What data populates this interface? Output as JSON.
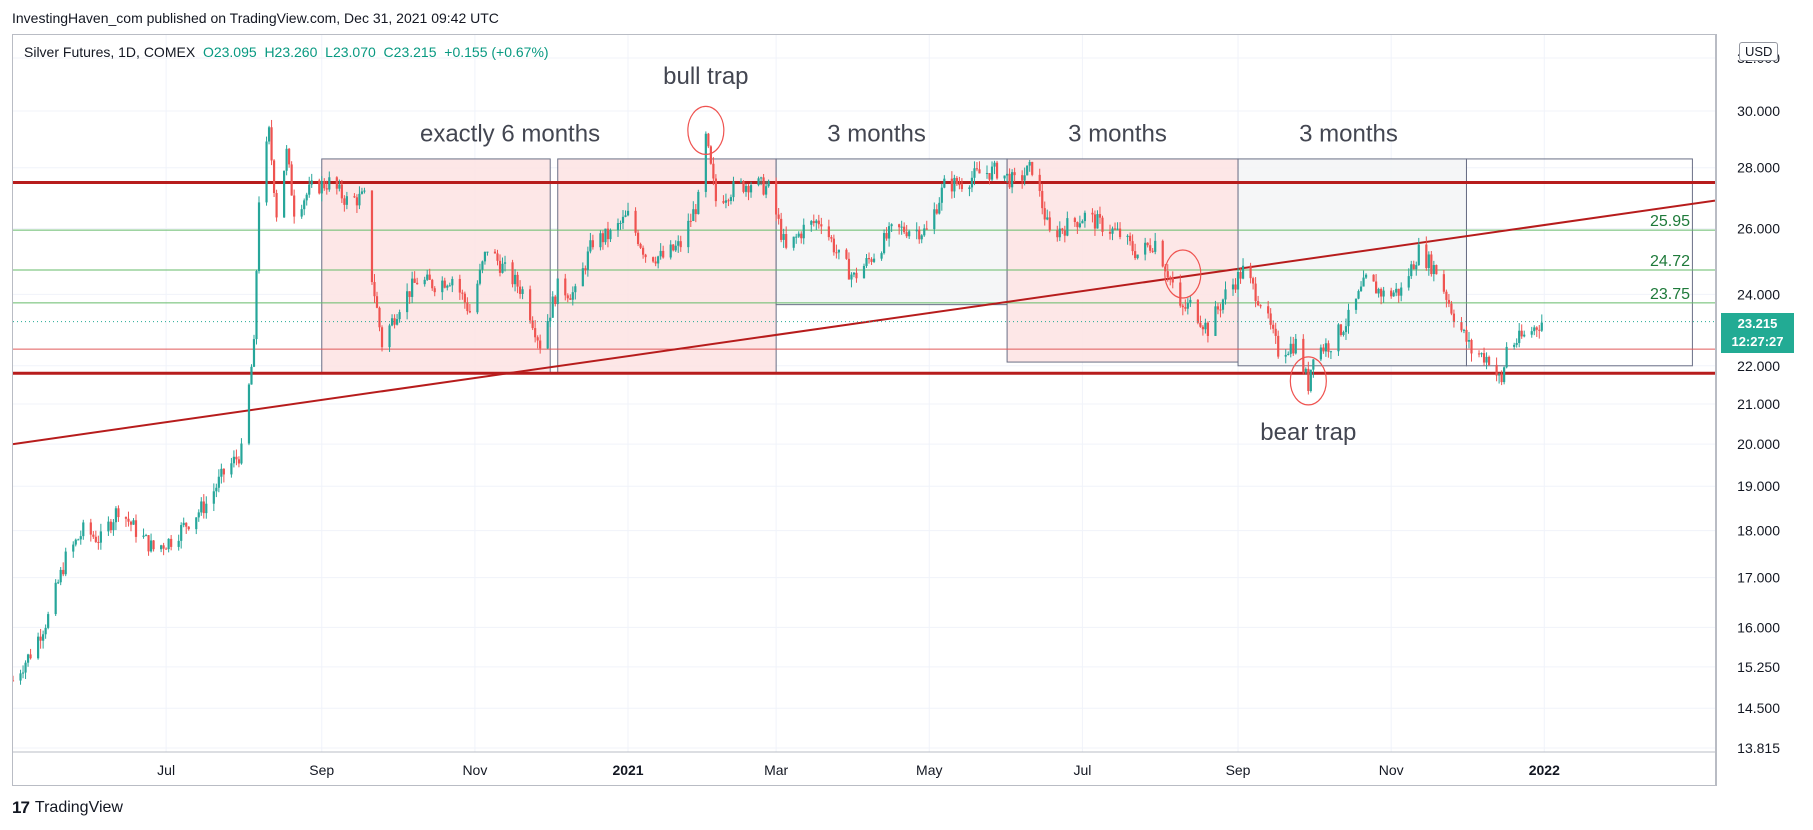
{
  "header": {
    "published": "InvestingHaven_com published on TradingView.com, Dec 31, 2021 09:42 UTC"
  },
  "legend": {
    "symbol": "Silver Futures, 1D, COMEX",
    "open": "O23.095",
    "high": "H23.260",
    "low": "L23.070",
    "close": "C23.215",
    "change": "+0.155 (+0.67%)"
  },
  "price_axis": {
    "currency": "USD",
    "last_price": "23.215",
    "countdown": "12:27:27"
  },
  "footer": {
    "brand": "TradingView",
    "logo_glyph": "17"
  },
  "colors": {
    "up": "#26a69a",
    "down": "#ef5350",
    "resistance": "#b71c1c",
    "level_green": "#4caf50",
    "range_box_red": "#fde3e3",
    "range_box_grey": "#f3f4f6",
    "last_price_badge": "#22ab94"
  },
  "chart_data": {
    "type": "candlestick",
    "symbol": "Silver Futures",
    "interval": "1D",
    "exchange": "COMEX",
    "y_scale": "log",
    "ylim": [
      13.815,
      32.0
    ],
    "y_ticks": [
      "32.000",
      "30.000",
      "28.000",
      "26.000",
      "24.000",
      "22.000",
      "21.000",
      "20.000",
      "19.000",
      "18.000",
      "17.000",
      "16.000",
      "15.250",
      "14.500",
      "13.815"
    ],
    "y_tick_values": [
      32,
      30,
      28,
      26,
      24,
      22,
      21,
      20,
      19,
      18,
      17,
      16,
      15.25,
      14.5,
      13.815
    ],
    "x_ticks": [
      {
        "label": "Jul",
        "date": "2020-07-01",
        "bold": false
      },
      {
        "label": "Sep",
        "date": "2020-09-01",
        "bold": false
      },
      {
        "label": "Nov",
        "date": "2020-11-01",
        "bold": false
      },
      {
        "label": "2021",
        "date": "2021-01-01",
        "bold": true
      },
      {
        "label": "Mar",
        "date": "2021-03-01",
        "bold": false
      },
      {
        "label": "May",
        "date": "2021-05-01",
        "bold": false
      },
      {
        "label": "Jul",
        "date": "2021-07-01",
        "bold": false
      },
      {
        "label": "Sep",
        "date": "2021-09-01",
        "bold": false
      },
      {
        "label": "Nov",
        "date": "2021-11-01",
        "bold": false
      },
      {
        "label": "2022",
        "date": "2022-01-01",
        "bold": true
      }
    ],
    "x_range": [
      "2020-05-01",
      "2022-03-10"
    ],
    "grid": true,
    "close_path": [
      [
        "2020-05-01",
        15.0
      ],
      [
        "2020-05-08",
        15.5
      ],
      [
        "2020-05-15",
        16.2
      ],
      [
        "2020-05-22",
        17.4
      ],
      [
        "2020-05-29",
        18.0
      ],
      [
        "2020-06-05",
        17.8
      ],
      [
        "2020-06-12",
        18.5
      ],
      [
        "2020-06-19",
        18.0
      ],
      [
        "2020-06-26",
        17.6
      ],
      [
        "2020-07-03",
        17.8
      ],
      [
        "2020-07-10",
        18.2
      ],
      [
        "2020-07-17",
        18.6
      ],
      [
        "2020-07-24",
        19.3
      ],
      [
        "2020-07-31",
        19.8
      ],
      [
        "2020-08-05",
        22.5
      ],
      [
        "2020-08-07",
        27.0
      ],
      [
        "2020-08-11",
        29.2
      ],
      [
        "2020-08-14",
        26.5
      ],
      [
        "2020-08-18",
        28.5
      ],
      [
        "2020-08-21",
        26.6
      ],
      [
        "2020-08-28",
        27.3
      ],
      [
        "2020-09-04",
        27.5
      ],
      [
        "2020-09-11",
        26.9
      ],
      [
        "2020-09-18",
        27.0
      ],
      [
        "2020-09-21",
        24.5
      ],
      [
        "2020-09-25",
        22.6
      ],
      [
        "2020-10-02",
        23.7
      ],
      [
        "2020-10-09",
        24.4
      ],
      [
        "2020-10-16",
        24.3
      ],
      [
        "2020-10-23",
        24.5
      ],
      [
        "2020-10-30",
        23.5
      ],
      [
        "2020-11-06",
        25.4
      ],
      [
        "2020-11-13",
        24.7
      ],
      [
        "2020-11-20",
        24.1
      ],
      [
        "2020-11-27",
        22.6
      ],
      [
        "2020-12-04",
        24.2
      ],
      [
        "2020-12-11",
        24.0
      ],
      [
        "2020-12-18",
        25.6
      ],
      [
        "2020-12-25",
        25.8
      ],
      [
        "2021-01-01",
        26.4
      ],
      [
        "2021-01-08",
        25.2
      ],
      [
        "2021-01-15",
        25.1
      ],
      [
        "2021-01-22",
        25.5
      ],
      [
        "2021-01-29",
        26.9
      ],
      [
        "2021-02-01",
        29.0
      ],
      [
        "2021-02-05",
        26.9
      ],
      [
        "2021-02-12",
        27.3
      ],
      [
        "2021-02-19",
        27.5
      ],
      [
        "2021-02-26",
        27.3
      ],
      [
        "2021-03-05",
        25.3
      ],
      [
        "2021-03-12",
        26.0
      ],
      [
        "2021-03-19",
        26.3
      ],
      [
        "2021-03-26",
        25.1
      ],
      [
        "2021-04-01",
        24.5
      ],
      [
        "2021-04-09",
        25.2
      ],
      [
        "2021-04-16",
        25.9
      ],
      [
        "2021-04-23",
        26.0
      ],
      [
        "2021-04-30",
        25.9
      ],
      [
        "2021-05-07",
        27.4
      ],
      [
        "2021-05-14",
        27.5
      ],
      [
        "2021-05-21",
        27.8
      ],
      [
        "2021-05-28",
        27.9
      ],
      [
        "2021-06-04",
        27.5
      ],
      [
        "2021-06-11",
        28.0
      ],
      [
        "2021-06-18",
        25.8
      ],
      [
        "2021-06-25",
        26.1
      ],
      [
        "2021-07-02",
        26.4
      ],
      [
        "2021-07-09",
        26.1
      ],
      [
        "2021-07-16",
        25.8
      ],
      [
        "2021-07-23",
        25.2
      ],
      [
        "2021-07-30",
        25.6
      ],
      [
        "2021-08-06",
        24.3
      ],
      [
        "2021-08-09",
        23.5
      ],
      [
        "2021-08-13",
        23.7
      ],
      [
        "2021-08-20",
        23.0
      ],
      [
        "2021-08-27",
        24.0
      ],
      [
        "2021-09-03",
        24.7
      ],
      [
        "2021-09-10",
        23.8
      ],
      [
        "2021-09-17",
        22.4
      ],
      [
        "2021-09-24",
        22.6
      ],
      [
        "2021-09-29",
        21.5
      ],
      [
        "2021-10-01",
        22.4
      ],
      [
        "2021-10-08",
        22.6
      ],
      [
        "2021-10-15",
        23.3
      ],
      [
        "2021-10-22",
        24.4
      ],
      [
        "2021-10-29",
        24.0
      ],
      [
        "2021-11-05",
        24.1
      ],
      [
        "2021-11-12",
        25.3
      ],
      [
        "2021-11-19",
        24.7
      ],
      [
        "2021-11-26",
        23.4
      ],
      [
        "2021-12-03",
        22.4
      ],
      [
        "2021-12-10",
        22.2
      ],
      [
        "2021-12-15",
        21.5
      ],
      [
        "2021-12-17",
        22.5
      ],
      [
        "2021-12-24",
        22.8
      ],
      [
        "2021-12-31",
        23.215
      ]
    ],
    "horizontal_lines": [
      {
        "value": 27.5,
        "color": "#b71c1c",
        "width": 3
      },
      {
        "value": 21.8,
        "color": "#b71c1c",
        "width": 3
      },
      {
        "value": 22.45,
        "color": "#e05a5a",
        "width": 1
      },
      {
        "value": 25.95,
        "color": "#66bb6a",
        "width": 1
      },
      {
        "value": 24.72,
        "color": "#66bb6a",
        "width": 1
      },
      {
        "value": 23.75,
        "color": "#66bb6a",
        "width": 1
      }
    ],
    "level_labels": [
      {
        "text": "25.95",
        "value": 25.95
      },
      {
        "text": "24.72",
        "value": 24.72
      },
      {
        "text": "23.75",
        "value": 23.75
      }
    ],
    "trendline": {
      "from": [
        "2020-05-01",
        20.0
      ],
      "to": [
        "2022-03-10",
        26.9
      ],
      "color": "#b71c1c"
    },
    "range_boxes": [
      {
        "start": "2020-09-01",
        "end": "2020-12-01",
        "top": 28.3,
        "bottom": 21.8,
        "fill": "red"
      },
      {
        "start": "2020-12-04",
        "end": "2021-03-01",
        "top": 28.3,
        "bottom": 21.8,
        "fill": "red"
      },
      {
        "start": "2021-03-01",
        "end": "2021-06-01",
        "top": 28.3,
        "bottom": 23.7,
        "fill": "grey"
      },
      {
        "start": "2021-06-01",
        "end": "2021-09-01",
        "top": 28.3,
        "bottom": 22.1,
        "fill": "red"
      },
      {
        "start": "2021-09-01",
        "end": "2021-12-01",
        "top": 28.3,
        "bottom": 22.0,
        "fill": "grey"
      },
      {
        "start": "2021-12-01",
        "end": "2022-03-01",
        "top": 28.3,
        "bottom": 22.0,
        "fill": "none"
      }
    ],
    "annotations": [
      {
        "text": "exactly 6 months",
        "date": "2020-11-15",
        "value": 28.9
      },
      {
        "text": "bull trap",
        "date": "2021-02-01",
        "value": 31.0
      },
      {
        "text": "3 months",
        "date": "2021-04-10",
        "value": 28.9
      },
      {
        "text": "3 months",
        "date": "2021-07-15",
        "value": 28.9
      },
      {
        "text": "3 months",
        "date": "2021-10-15",
        "value": 28.9
      },
      {
        "text": "bear trap",
        "date": "2021-09-29",
        "value": 20.1
      }
    ],
    "circles": [
      {
        "date": "2021-02-01",
        "value": 29.3
      },
      {
        "date": "2021-08-10",
        "value": 24.6
      },
      {
        "date": "2021-09-29",
        "value": 21.6
      }
    ]
  }
}
